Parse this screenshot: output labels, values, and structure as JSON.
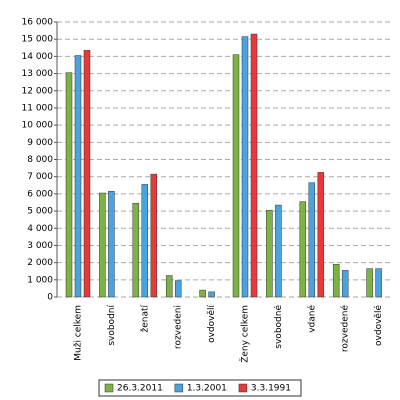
{
  "chart_data": {
    "type": "bar",
    "categories": [
      "Muži celkem",
      "svobodní",
      "ženatí",
      "rozvedeni",
      "ovdovělí",
      "Ženy celkem",
      "svobodné",
      "vdané",
      "rozvedené",
      "ovdovělé"
    ],
    "series": [
      {
        "name": "26.3.2011",
        "color": "#7cb342",
        "values": [
          13050,
          6050,
          5450,
          1250,
          400,
          14100,
          5050,
          5550,
          1900,
          1650
        ]
      },
      {
        "name": "1.3.2001",
        "color": "#4aa3df",
        "values": [
          14050,
          6150,
          6550,
          950,
          300,
          15150,
          5350,
          6650,
          1550,
          1650
        ]
      },
      {
        "name": "3.3.1991",
        "color": "#e8393a",
        "values": [
          14350,
          null,
          7150,
          null,
          null,
          15300,
          null,
          7250,
          null,
          null
        ]
      }
    ],
    "ylim": [
      0,
      16000
    ],
    "yticks": [
      0,
      {
        "value": 1000,
        "label": "1 000"
      },
      {
        "value": 2000,
        "label": "2 000"
      },
      {
        "value": 3000,
        "label": "3 000"
      },
      {
        "value": 4000,
        "label": "4 000"
      },
      {
        "value": 5000,
        "label": "5 000"
      },
      {
        "value": 6000,
        "label": "6 000"
      },
      {
        "value": 7000,
        "label": "7 000"
      },
      {
        "value": 8000,
        "label": "8 000"
      },
      {
        "value": 9000,
        "label": "9 000"
      },
      {
        "value": 10000,
        "label": "10 000"
      },
      {
        "value": 11000,
        "label": "11 000"
      },
      {
        "value": 12000,
        "label": "12 000"
      },
      {
        "value": 13000,
        "label": "13 000"
      },
      {
        "value": 14000,
        "label": "14 000"
      },
      {
        "value": 15000,
        "label": "15 000"
      },
      {
        "value": 16000,
        "label": "16 000"
      }
    ],
    "grid": true,
    "legend": "bottom"
  }
}
